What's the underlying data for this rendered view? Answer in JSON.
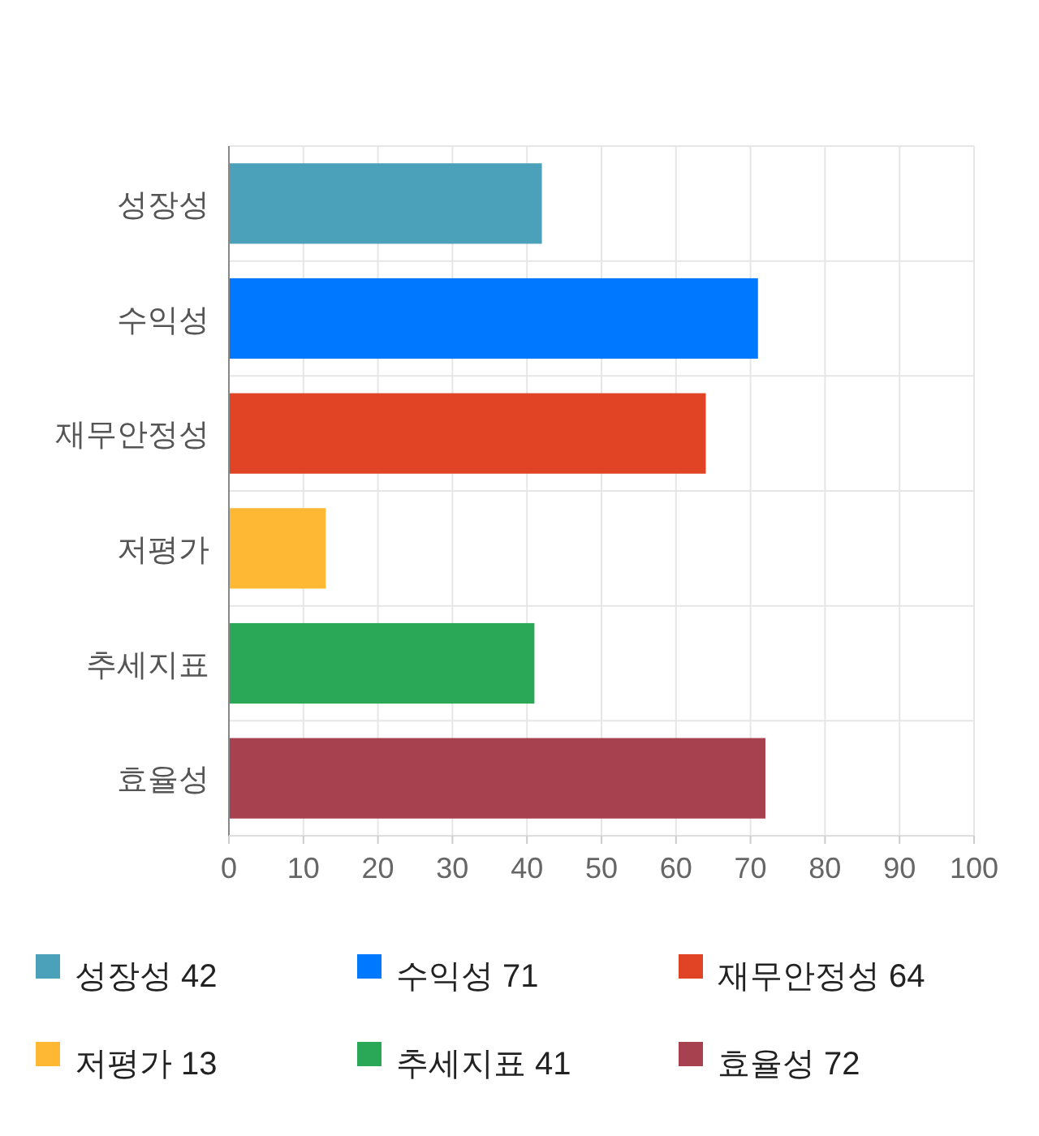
{
  "chart_data": {
    "type": "bar",
    "orientation": "horizontal",
    "stacked": true,
    "categories": [
      "성장성",
      "수익성",
      "재무안정성",
      "저평가",
      "추세지표",
      "효율성"
    ],
    "series": [
      {
        "name": "성장성 42",
        "color": "#4aa1b9",
        "values": [
          42,
          null,
          null,
          null,
          null,
          null
        ]
      },
      {
        "name": "수익성 71",
        "color": "#0078ff",
        "values": [
          null,
          71,
          null,
          null,
          null,
          null
        ]
      },
      {
        "name": "재무안정성 64",
        "color": "#e04424",
        "values": [
          null,
          null,
          64,
          null,
          null,
          null
        ]
      },
      {
        "name": "저평가 13",
        "color": "#ffb833",
        "values": [
          null,
          null,
          null,
          13,
          null,
          null
        ]
      },
      {
        "name": "추세지표 41",
        "color": "#2aa757",
        "values": [
          null,
          null,
          null,
          null,
          41,
          null
        ]
      },
      {
        "name": "효율성 72",
        "color": "#a8414f",
        "values": [
          null,
          null,
          null,
          null,
          null,
          72
        ]
      }
    ],
    "xlim": [
      0,
      100
    ],
    "xticks": [
      0,
      10,
      20,
      30,
      40,
      50,
      60,
      70,
      80,
      90,
      100
    ],
    "grid": true,
    "legend": "bottom"
  }
}
